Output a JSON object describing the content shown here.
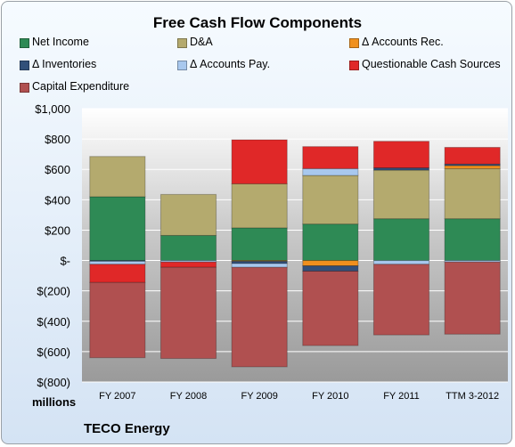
{
  "chart_data": {
    "type": "bar",
    "stacked": true,
    "title": "Free Cash Flow Components",
    "units_label": "millions",
    "company": "TECO Energy",
    "categories": [
      "FY 2007",
      "FY 2008",
      "FY 2009",
      "FY 2010",
      "FY 2011",
      "TTM 3-2012"
    ],
    "ylim": [
      -800,
      1000
    ],
    "yticks": [
      1000,
      800,
      600,
      400,
      200,
      0,
      -200,
      -400,
      -600,
      -800
    ],
    "ytick_labels": [
      "$1,000",
      "$800",
      "$600",
      "$400",
      "$200",
      "$-",
      "$(200)",
      "$(400)",
      "$(600)",
      "$(800)"
    ],
    "grid": true,
    "legend_position": "top",
    "series": [
      {
        "name": "Net Income",
        "color": "#2e8a55",
        "values": [
          420,
          165,
          215,
          240,
          275,
          275
        ]
      },
      {
        "name": "D&A",
        "color": "#b4aa6e",
        "values": [
          265,
          270,
          290,
          320,
          320,
          330
        ]
      },
      {
        "name": "Δ Accounts Rec.",
        "color": "#f0901e",
        "values": [
          0,
          0,
          -5,
          -35,
          0,
          20
        ]
      },
      {
        "name": "Δ Inventories",
        "color": "#32507a",
        "values": [
          -5,
          0,
          -15,
          -35,
          15,
          10
        ]
      },
      {
        "name": "Δ Accounts Pay.",
        "color": "#a8c8ee",
        "values": [
          -20,
          -10,
          -25,
          45,
          -25,
          -10
        ]
      },
      {
        "name": "Questionable Cash Sources",
        "color": "#e02828",
        "values": [
          -120,
          -35,
          290,
          145,
          175,
          110
        ]
      },
      {
        "name": "Capital Expenditure",
        "color": "#b05050",
        "values": [
          -495,
          -600,
          -655,
          -490,
          -465,
          -475
        ]
      }
    ]
  }
}
